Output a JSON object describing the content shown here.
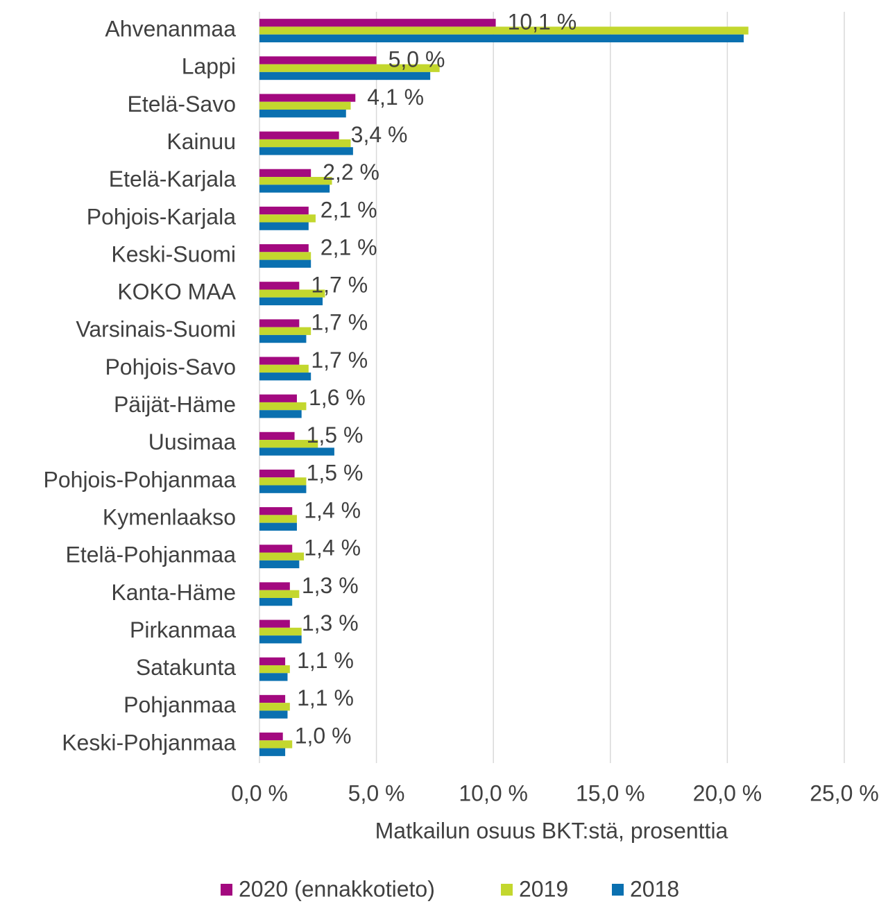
{
  "chart_data": {
    "type": "bar",
    "orientation": "horizontal",
    "x_label": "Matkailun osuus BKT:stä, prosenttia",
    "categories": [
      "Ahvenanmaa",
      "Lappi",
      "Etelä-Savo",
      "Kainuu",
      "Etelä-Karjala",
      "Pohjois-Karjala",
      "Keski-Suomi",
      "KOKO MAA",
      "Varsinais-Suomi",
      "Pohjois-Savo",
      "Päijät-Häme",
      "Uusimaa",
      "Pohjois-Pohjanmaa",
      "Kymenlaakso",
      "Etelä-Pohjanmaa",
      "Kanta-Häme",
      "Pirkanmaa",
      "Satakunta",
      "Pohjanmaa",
      "Keski-Pohjanmaa"
    ],
    "series": [
      {
        "name": "2020 (ennakkotieto)",
        "color": "#a3097f",
        "values": [
          10.1,
          5.0,
          4.1,
          3.4,
          2.2,
          2.1,
          2.1,
          1.7,
          1.7,
          1.7,
          1.6,
          1.5,
          1.5,
          1.4,
          1.4,
          1.3,
          1.3,
          1.1,
          1.1,
          1.0
        ],
        "value_labels": [
          "10,1 %",
          "5,0 %",
          "4,1 %",
          "3,4 %",
          "2,2 %",
          "2,1 %",
          "2,1 %",
          "1,7 %",
          "1,7 %",
          "1,7 %",
          "1,6 %",
          "1,5 %",
          "1,5 %",
          "1,4 %",
          "1,4 %",
          "1,3 %",
          "1,3 %",
          "1,1 %",
          "1,1 %",
          "1,0 %"
        ]
      },
      {
        "name": "2019",
        "color": "#c3d72e",
        "values": [
          20.9,
          7.7,
          3.9,
          3.9,
          3.1,
          2.4,
          2.2,
          2.8,
          2.2,
          2.1,
          2.0,
          2.5,
          2.0,
          1.6,
          1.9,
          1.7,
          1.8,
          1.3,
          1.3,
          1.4
        ]
      },
      {
        "name": "2018",
        "color": "#0a70b0",
        "values": [
          20.7,
          7.3,
          3.7,
          4.0,
          3.0,
          2.1,
          2.2,
          2.7,
          2.0,
          2.2,
          1.8,
          3.2,
          2.0,
          1.6,
          1.7,
          1.4,
          1.8,
          1.2,
          1.2,
          1.1
        ]
      }
    ],
    "xlim": [
      0,
      25
    ],
    "xticks": [
      {
        "value": 0,
        "label": "0,0 %"
      },
      {
        "value": 5,
        "label": "5,0 %"
      },
      {
        "value": 10,
        "label": "10,0 %"
      },
      {
        "value": 15,
        "label": "15,0 %"
      },
      {
        "value": 20,
        "label": "20,0 %"
      },
      {
        "value": 25,
        "label": "25,0 %"
      }
    ],
    "grid": true,
    "legend": "bottom"
  }
}
